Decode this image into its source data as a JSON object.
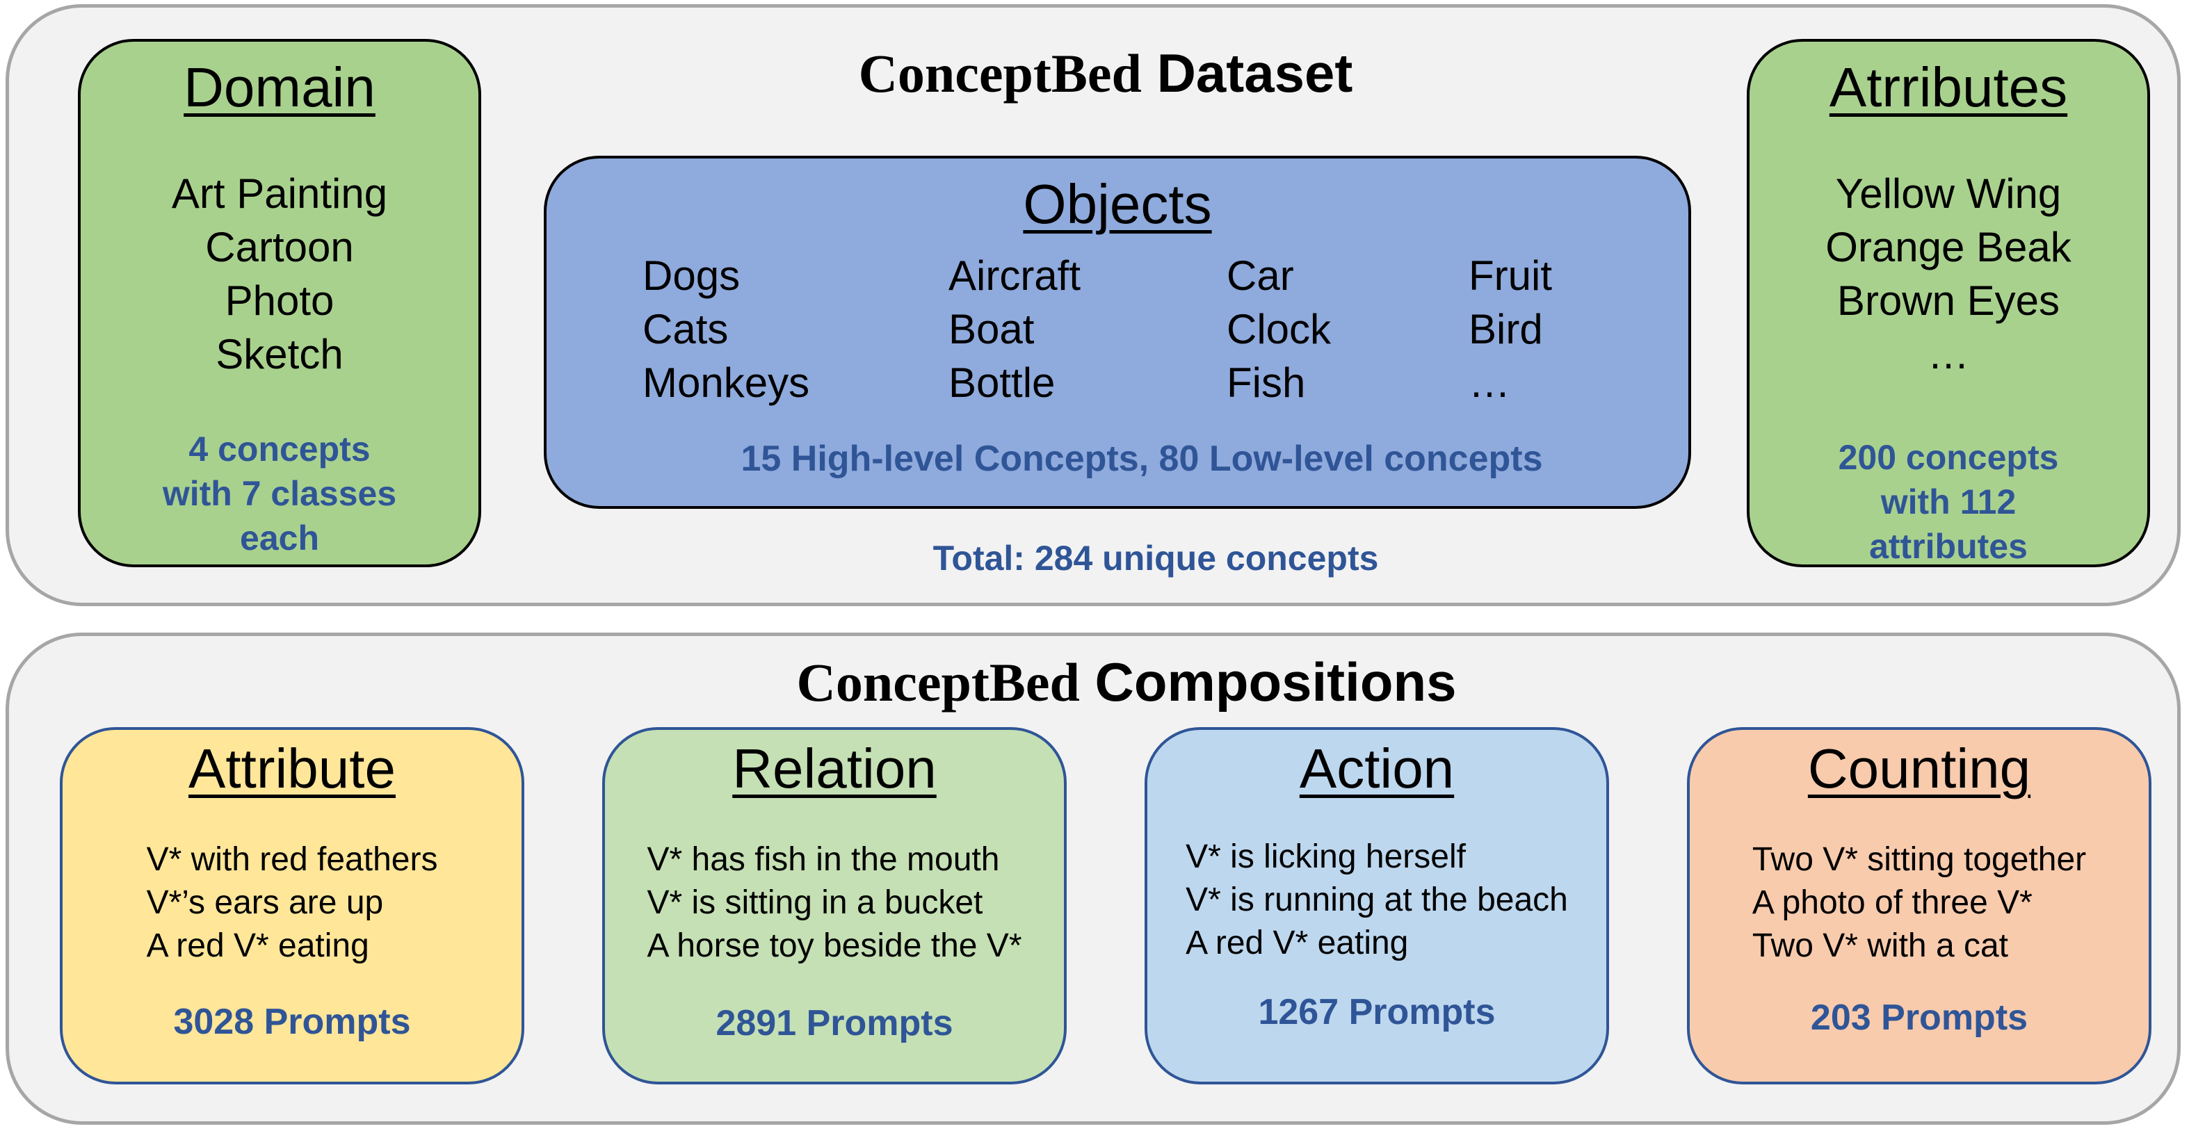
{
  "dataset": {
    "brand": "ConceptBed",
    "title": "Dataset",
    "domain": {
      "title": "Domain",
      "items": [
        "Art Painting",
        "Cartoon",
        "Photo",
        "Sketch"
      ],
      "stat_lines": [
        "4 concepts",
        "with 7 classes",
        "each"
      ]
    },
    "objects": {
      "title": "Objects",
      "columns": [
        [
          "Dogs",
          "Cats",
          "Monkeys"
        ],
        [
          "Aircraft",
          "Boat",
          "Bottle"
        ],
        [
          "Car",
          "Clock",
          "Fish"
        ],
        [
          "Fruit",
          "Bird",
          "…"
        ]
      ],
      "stat": "15 High-level Concepts, 80 Low-level concepts"
    },
    "attributes": {
      "title": "Atrributes",
      "items": [
        "Yellow Wing",
        "Orange Beak",
        "Brown Eyes",
        "…"
      ],
      "stat_lines": [
        "200 concepts",
        "with 112",
        "attributes"
      ]
    },
    "total": "Total: 284 unique concepts"
  },
  "compositions": {
    "brand": "ConceptBed",
    "title": "Compositions",
    "boxes": [
      {
        "title": "Attribute",
        "items": [
          "V* with red feathers",
          "V*’s ears are up",
          "A red V* eating"
        ],
        "stat": "3028 Prompts"
      },
      {
        "title": "Relation",
        "items": [
          "V* has fish in the mouth",
          "V* is sitting in a bucket",
          "A horse toy beside the V*"
        ],
        "stat": "2891 Prompts"
      },
      {
        "title": "Action",
        "items": [
          "V* is licking herself",
          "V* is running at the beach",
          "A red V* eating"
        ],
        "stat": "1267 Prompts"
      },
      {
        "title": "Counting",
        "items": [
          "Two V* sitting together",
          "A photo of three V*",
          "Two V* with a cat"
        ],
        "stat": "203 Prompts"
      }
    ]
  },
  "colors": {
    "panel_bg": "#f2f2f2",
    "panel_border": "#a6a6a6",
    "green": "#a9d18e",
    "blue": "#8faadc",
    "stat_text": "#2f5597",
    "attribute_bg": "#ffe699",
    "relation_bg": "#c5e0b4",
    "action_bg": "#bdd7ee",
    "counting_bg": "#f8cbad"
  }
}
